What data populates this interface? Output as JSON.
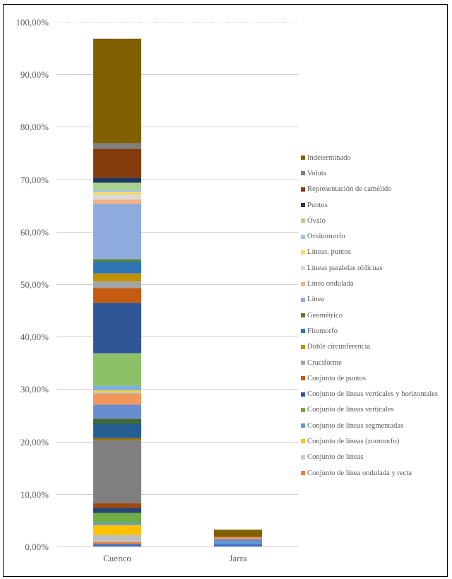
{
  "chart_data": {
    "type": "bar",
    "stacked": true,
    "title": "",
    "xlabel": "",
    "ylabel": "",
    "ylim": [
      0,
      100
    ],
    "y_tick_step": 10,
    "y_tick_labels": [
      "0,00%",
      "10,00%",
      "20,00%",
      "30,00%",
      "40,00%",
      "50,00%",
      "60,00%",
      "70,00%",
      "80,00%",
      "90,00%",
      "100,00%"
    ],
    "grid": true,
    "legend_position": "right",
    "categories": [
      "Cuenco",
      "Jarra"
    ],
    "legend": [
      {
        "name": "Indeterminado",
        "color": "#806000"
      },
      {
        "name": "Voluta",
        "color": "#7f7f7f"
      },
      {
        "name": "Representación de camélido",
        "color": "#843c0c"
      },
      {
        "name": "Puntos",
        "color": "#203864"
      },
      {
        "name": "Óvalo",
        "color": "#a9d18e"
      },
      {
        "name": "Ornitomorfo",
        "color": "#9dc3e6"
      },
      {
        "name": "Líneas, puntos",
        "color": "#ffd966"
      },
      {
        "name": "Líneas paralelas oblicuas",
        "color": "#d9d9d9"
      },
      {
        "name": "Línea ondulada",
        "color": "#f4b183"
      },
      {
        "name": "Línea",
        "color": "#8faadc"
      },
      {
        "name": "Geométrico",
        "color": "#548235"
      },
      {
        "name": "Fitomorfo",
        "color": "#2e75b6"
      },
      {
        "name": "Doble circunferencia",
        "color": "#bf9000"
      },
      {
        "name": "Cruciforme",
        "color": "#a5a5a5"
      },
      {
        "name": "Conjunto de puntos",
        "color": "#c55a11"
      },
      {
        "name": "Conjunto de líneas verticales y horizontales",
        "color": "#2f5597"
      },
      {
        "name": "Conjunto de líneas verticales",
        "color": "#70ad47"
      },
      {
        "name": "Conjunto de líneas segmentadas",
        "color": "#5b9bd5"
      },
      {
        "name": "Conjunto de líneas (zoomorfo)",
        "color": "#ffc000"
      },
      {
        "name": "Conjunto de líneas",
        "color": "#c9c9c9"
      },
      {
        "name": "Conjunto de línea ondulada y recta",
        "color": "#ed7d31"
      }
    ],
    "series_stack_bottom_to_top": [
      {
        "color": "#4472c4",
        "values": [
          0.5,
          0.5
        ]
      },
      {
        "color": "#ed7d31",
        "values": [
          0.35,
          0.0
        ]
      },
      {
        "color": "#bfbfbf",
        "values": [
          1.35,
          0.0
        ]
      },
      {
        "color": "#ffc000",
        "values": [
          1.9,
          0.0
        ]
      },
      {
        "color": "#5b9bd5",
        "values": [
          0.4,
          0.3
        ]
      },
      {
        "color": "#70ad47",
        "values": [
          1.9,
          0.0
        ]
      },
      {
        "color": "#264478",
        "values": [
          0.95,
          0.0
        ]
      },
      {
        "color": "#9e480e",
        "values": [
          0.9,
          0.0
        ]
      },
      {
        "color": "#7f7f7f",
        "values": [
          12.0,
          0.0
        ]
      },
      {
        "color": "#997300",
        "values": [
          0.4,
          0.0
        ]
      },
      {
        "color": "#255e91",
        "values": [
          2.8,
          0.0
        ]
      },
      {
        "color": "#43682b",
        "values": [
          0.9,
          0.0
        ]
      },
      {
        "color": "#698ed0",
        "values": [
          2.7,
          0.6
        ]
      },
      {
        "color": "#f1975a",
        "values": [
          2.0,
          0.4
        ]
      },
      {
        "color": "#b7b7b7",
        "values": [
          0.3,
          0.0
        ]
      },
      {
        "color": "#ffcd33",
        "values": [
          0.4,
          0.0
        ]
      },
      {
        "color": "#7cafdd",
        "values": [
          0.9,
          0.0
        ]
      },
      {
        "color": "#8cc168",
        "values": [
          6.2,
          0.0
        ]
      },
      {
        "color": "#2f5597",
        "values": [
          9.6,
          0.0
        ]
      },
      {
        "color": "#c55a11",
        "values": [
          2.8,
          0.0
        ]
      },
      {
        "color": "#a5a5a5",
        "values": [
          1.3,
          0.0
        ]
      },
      {
        "color": "#bf9000",
        "values": [
          1.5,
          0.0
        ]
      },
      {
        "color": "#2e75b6",
        "values": [
          2.2,
          0.0
        ]
      },
      {
        "color": "#548235",
        "values": [
          0.5,
          0.0
        ]
      },
      {
        "color": "#8faadc",
        "values": [
          10.6,
          0.0
        ]
      },
      {
        "color": "#f4b183",
        "values": [
          0.8,
          0.0
        ]
      },
      {
        "color": "#d9d9d9",
        "values": [
          0.9,
          0.0
        ]
      },
      {
        "color": "#ffd966",
        "values": [
          0.55,
          0.0
        ]
      },
      {
        "color": "#9dc3e6",
        "values": [
          0.4,
          0.0
        ]
      },
      {
        "color": "#a9d18e",
        "values": [
          1.35,
          0.0
        ]
      },
      {
        "color": "#203864",
        "values": [
          0.95,
          0.0
        ]
      },
      {
        "color": "#843c0c",
        "values": [
          5.5,
          0.0
        ]
      },
      {
        "color": "#7f7f7f",
        "values": [
          1.1,
          0.0
        ]
      },
      {
        "color": "#806000",
        "values": [
          19.9,
          1.4
        ]
      }
    ]
  }
}
